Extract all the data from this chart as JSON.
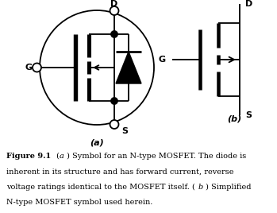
{
  "fig_width": 3.49,
  "fig_height": 2.68,
  "dpi": 100,
  "bg_color": "#ffffff",
  "line_color": "#000000",
  "lw": 1.3,
  "label_a": "(a)",
  "label_b": "(b)",
  "caption_bold": "Figure 9.1",
  "caption_italic_a": "(a)",
  "caption_text1": " Symbol for an N-type MOSFET. The diode is\ninherent in its structure and has forward current, reverse\nvoltage ratings identical to the MOSFET itself. ",
  "caption_italic_b": "(b)",
  "caption_text2": " Simplified\nN-type MOSFET symbol used herein."
}
